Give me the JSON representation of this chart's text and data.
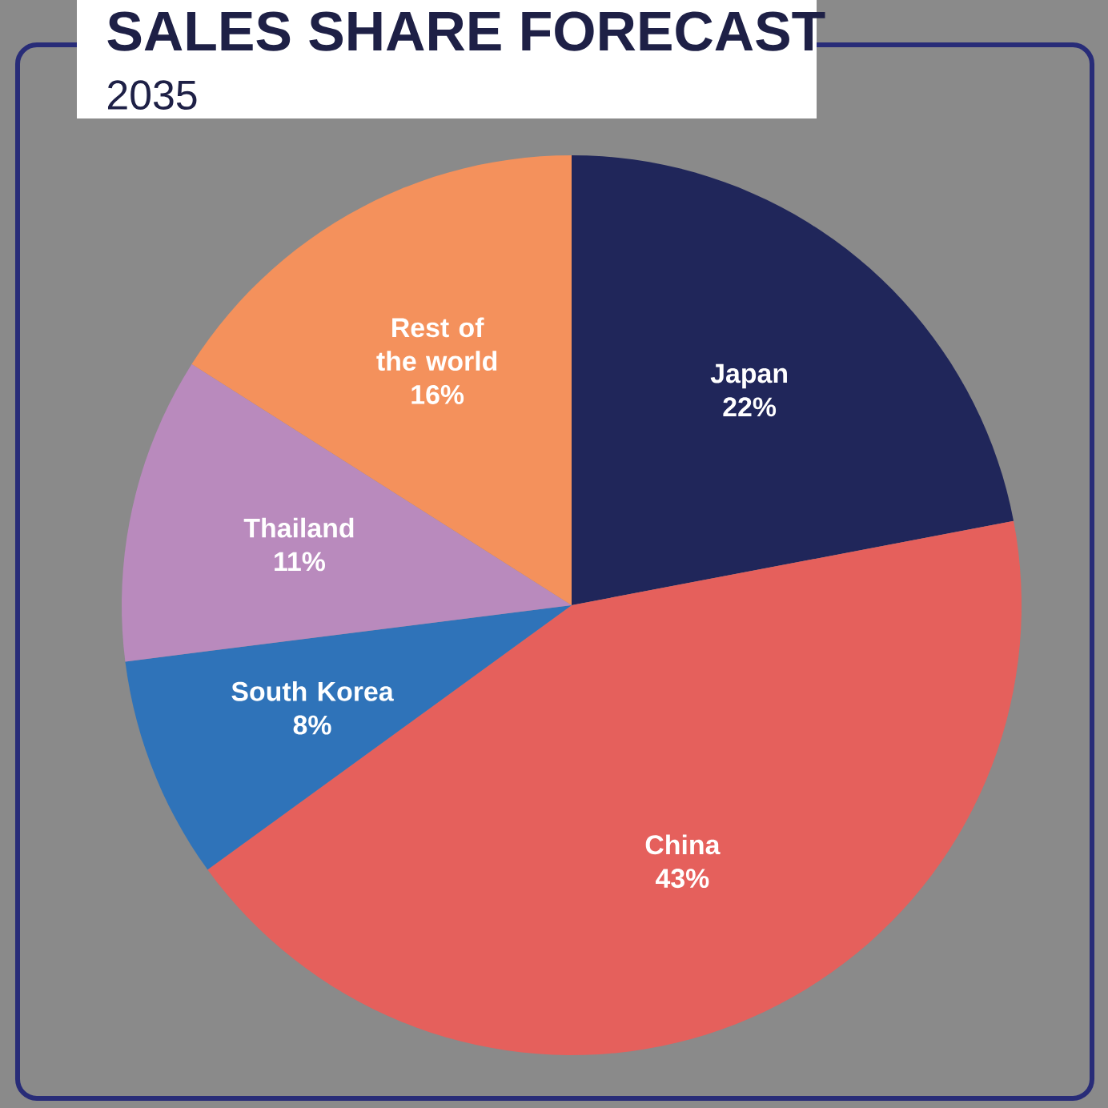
{
  "chart_data": {
    "type": "pie",
    "title": "SALES SHARE FORECAST",
    "subtitle": "2035",
    "categories": [
      "Japan",
      "China",
      "South Korea",
      "Thailand",
      "Rest of the world"
    ],
    "values": [
      22,
      43,
      8,
      11,
      16
    ],
    "value_labels": [
      "22%",
      "43%",
      "8%",
      "11%",
      "16%"
    ],
    "colors": [
      "#20265a",
      "#e5605c",
      "#2f73b9",
      "#b98abd",
      "#f4915c"
    ]
  }
}
